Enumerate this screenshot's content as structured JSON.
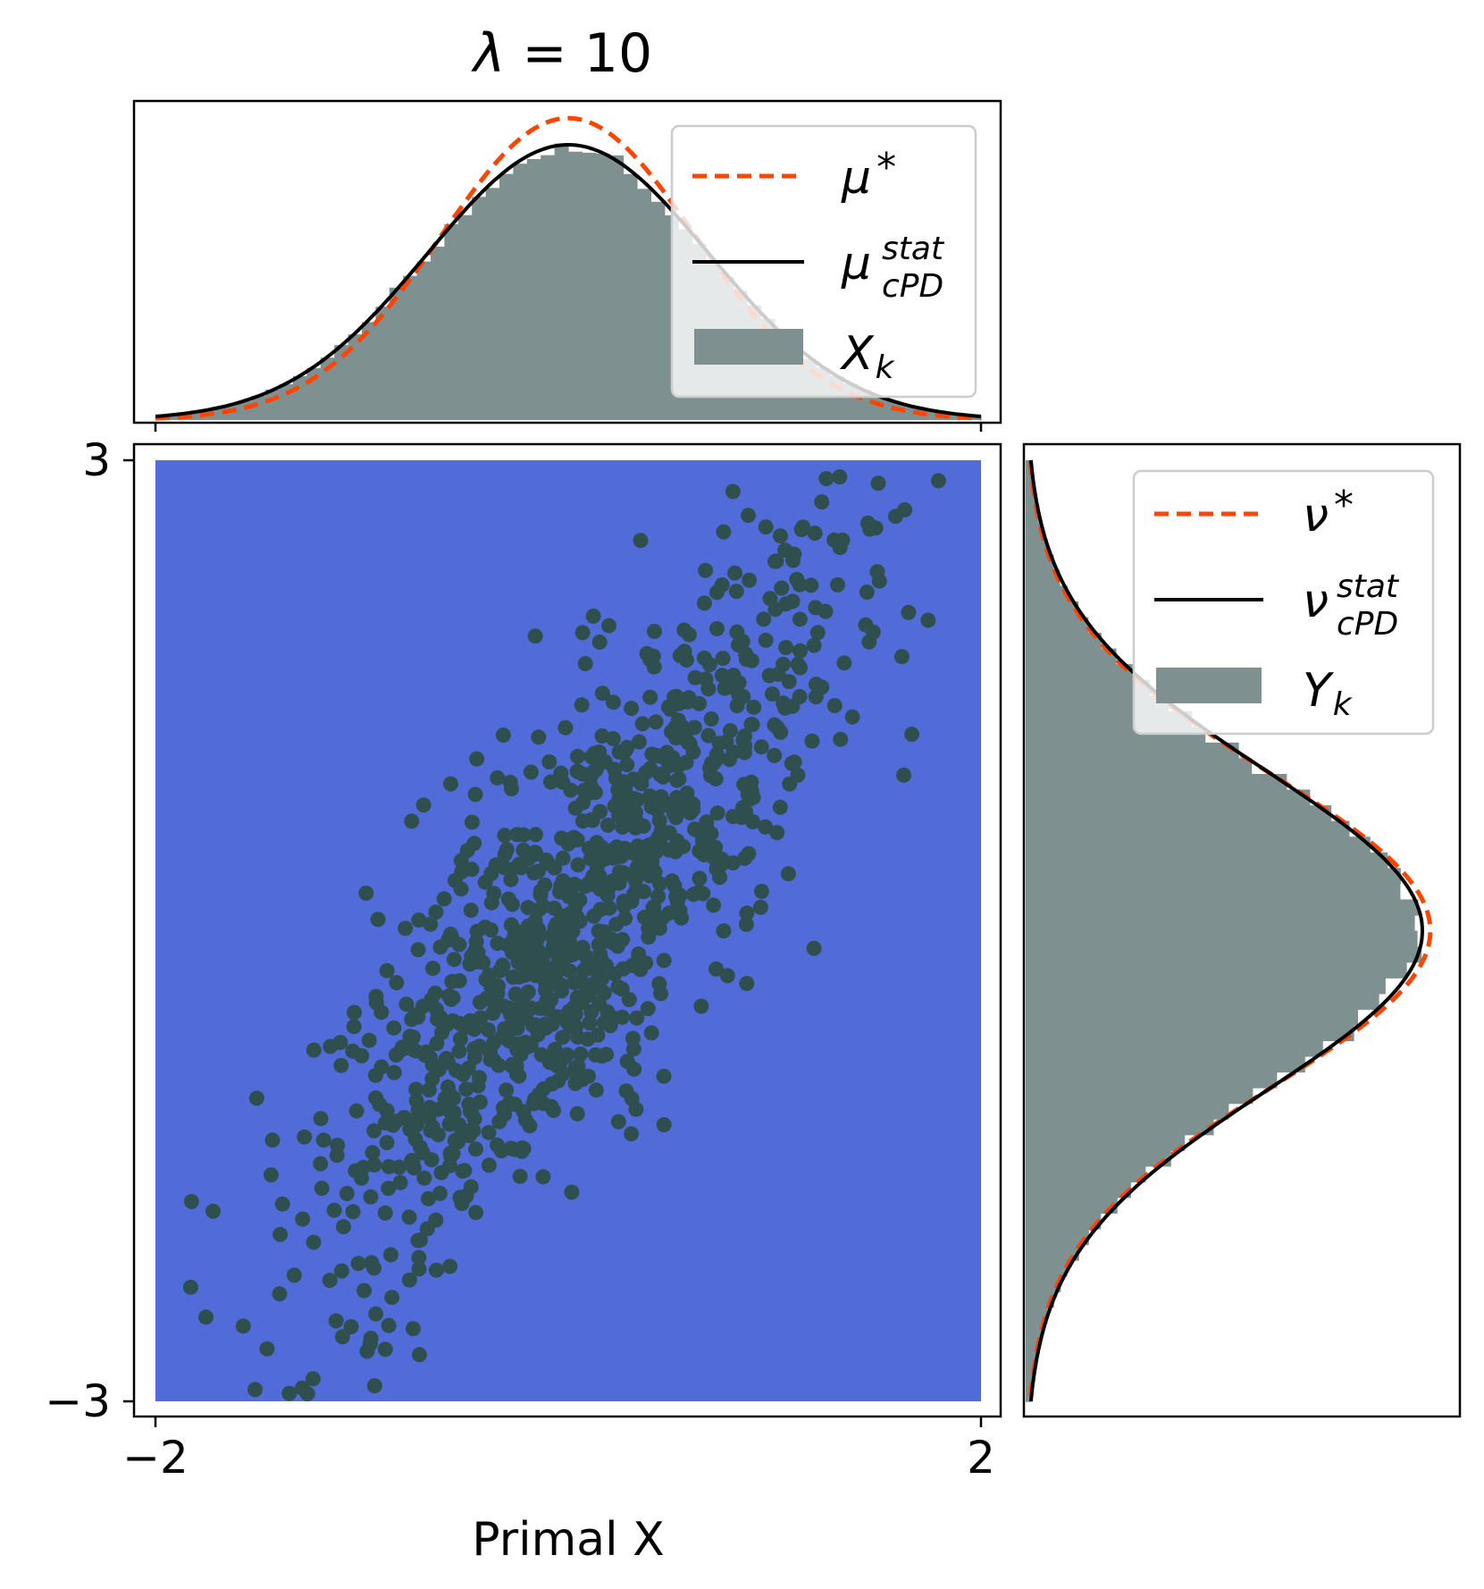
{
  "chart_data": {
    "type": "scatter",
    "title": {
      "symbol": "λ",
      "equals": " = ",
      "value": "10"
    },
    "xlabel": "Primal X",
    "ylabel": "",
    "xlim": [
      -2,
      2
    ],
    "ylim": [
      -3,
      3
    ],
    "x_ticks": [
      {
        "value": -2,
        "label": "−2"
      },
      {
        "value": 2,
        "label": "2"
      }
    ],
    "y_ticks": [
      {
        "value": 3,
        "label": "3"
      },
      {
        "value": -3,
        "label": "−3"
      }
    ],
    "grid": false,
    "background_color": "#516CD8",
    "point_color": "#2F4F4F",
    "hist_color": "#7F9090",
    "target_color": "#FF4500",
    "fitted_color": "#000000",
    "scatter": {
      "n_points": 1000,
      "x_mean": 0.0,
      "x_std": 0.7,
      "y_mean": 0.0,
      "y_std": 1.3,
      "correlation": 0.85
    },
    "top_marginal": {
      "target_density": {
        "mean": 0.0,
        "std": 0.62
      },
      "fitted_density": {
        "mean": 0.0,
        "std": 0.68
      },
      "legend_position": "upper right",
      "legend": [
        {
          "symbol": "μ",
          "sup": "*",
          "sub": "",
          "style": "dashed",
          "color": "#FF4500"
        },
        {
          "symbol": "μ",
          "sup": "stat",
          "sub": "cPD",
          "style": "solid",
          "color": "#000000"
        },
        {
          "symbol": "X",
          "sup": "",
          "sub": "k",
          "style": "patch",
          "color": "#7F9090"
        }
      ]
    },
    "right_marginal": {
      "target_density": {
        "mean": 0.0,
        "std": 1.0
      },
      "fitted_density": {
        "mean": 0.0,
        "std": 1.02
      },
      "legend_position": "upper right",
      "legend": [
        {
          "symbol": "ν",
          "sup": "*",
          "sub": "",
          "style": "dashed",
          "color": "#FF4500"
        },
        {
          "symbol": "ν",
          "sup": "stat",
          "sub": "cPD",
          "style": "solid",
          "color": "#000000"
        },
        {
          "symbol": "Y",
          "sup": "",
          "sub": "k",
          "style": "patch",
          "color": "#7F9090"
        }
      ]
    }
  }
}
